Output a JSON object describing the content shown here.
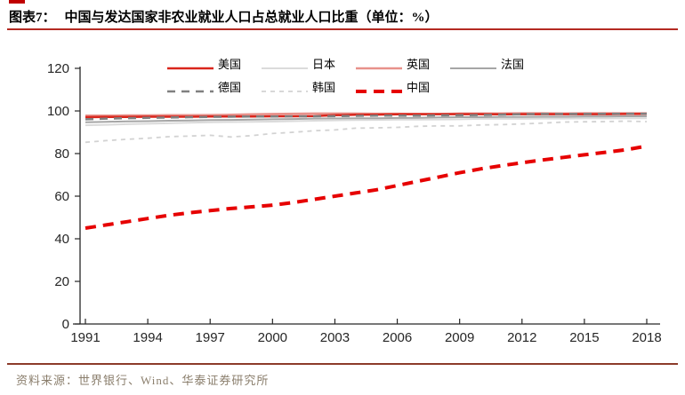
{
  "page": {
    "title_label": "图表7：",
    "title": "中国与发达国家非农业就业人口占总就业人口比重（单位：%）",
    "source_text": "资料来源：世界银行、Wind、华泰证券研究所"
  },
  "colors": {
    "title_rule": "#b42a22",
    "footer_rule": "#8c3b2a",
    "source_text": "#8a7e6c",
    "axis": "#262626",
    "corner_mark": "#c00000"
  },
  "chart_data": {
    "type": "line",
    "title": "中国与发达国家非农业就业人口占总就业人口比重（单位：%）",
    "xlabel": "",
    "ylabel": "",
    "ylim": [
      0,
      120
    ],
    "y_ticks": [
      0,
      20,
      40,
      60,
      80,
      100,
      120
    ],
    "x_ticks": [
      1991,
      1994,
      1997,
      2000,
      2003,
      2006,
      2009,
      2012,
      2015,
      2018
    ],
    "grid": false,
    "legend_position": "top",
    "x": [
      1991,
      1992,
      1993,
      1994,
      1995,
      1996,
      1997,
      1998,
      1999,
      2000,
      2001,
      2002,
      2003,
      2004,
      2005,
      2006,
      2007,
      2008,
      2009,
      2010,
      2011,
      2012,
      2013,
      2014,
      2015,
      2016,
      2017,
      2018
    ],
    "series": [
      {
        "id": "us",
        "name": "美国",
        "color": "#d9261c",
        "style": "solid",
        "width": 2.5,
        "values": [
          97.1,
          97.2,
          97.2,
          97.3,
          97.3,
          97.3,
          97.4,
          97.4,
          97.4,
          97.5,
          97.5,
          97.6,
          98.0,
          98.2,
          98.3,
          98.4,
          98.5,
          98.5,
          98.5,
          98.5,
          98.4,
          98.5,
          98.5,
          98.5,
          98.5,
          98.5,
          98.6,
          98.6
        ]
      },
      {
        "id": "japan",
        "name": "日本",
        "color": "#dbdbdb",
        "style": "solid",
        "width": 2,
        "values": [
          93.3,
          93.5,
          93.8,
          94.0,
          94.2,
          94.5,
          94.7,
          94.8,
          94.9,
          95.0,
          95.2,
          95.4,
          95.6,
          95.7,
          95.8,
          95.9,
          95.9,
          96.0,
          96.1,
          96.3,
          96.3,
          96.3,
          96.4,
          96.4,
          96.5,
          96.5,
          96.6,
          96.6
        ]
      },
      {
        "id": "uk",
        "name": "英国",
        "color": "#e8918b",
        "style": "solid",
        "width": 2.5,
        "values": [
          97.8,
          97.8,
          97.9,
          97.9,
          98.0,
          98.0,
          98.1,
          98.2,
          98.4,
          98.6,
          98.7,
          98.8,
          98.8,
          98.8,
          98.7,
          98.7,
          98.6,
          98.6,
          98.8,
          98.8,
          98.8,
          98.9,
          98.9,
          98.8,
          98.9,
          98.9,
          98.9,
          98.9
        ]
      },
      {
        "id": "france",
        "name": "法国",
        "color": "#a6a6a6",
        "style": "solid",
        "width": 2,
        "values": [
          94.7,
          94.9,
          95.1,
          95.2,
          95.4,
          95.5,
          95.7,
          95.8,
          95.9,
          96.1,
          96.2,
          96.4,
          96.5,
          96.6,
          96.6,
          96.7,
          96.8,
          97.0,
          97.1,
          97.1,
          97.2,
          97.2,
          97.3,
          97.3,
          97.4,
          97.4,
          97.5,
          97.5
        ]
      },
      {
        "id": "germany",
        "name": "德国",
        "color": "#808080",
        "style": "dashed",
        "width": 2.5,
        "values": [
          96.1,
          96.4,
          96.6,
          96.8,
          96.9,
          97.1,
          97.2,
          97.3,
          97.4,
          97.4,
          97.5,
          97.5,
          97.6,
          97.7,
          97.8,
          97.8,
          97.8,
          97.9,
          98.0,
          98.1,
          98.3,
          98.5,
          98.6,
          98.6,
          98.6,
          98.7,
          98.7,
          98.7
        ]
      },
      {
        "id": "korea",
        "name": "韩国",
        "color": "#d2d2d2",
        "style": "dashed",
        "width": 1.8,
        "values": [
          85.3,
          86.1,
          86.7,
          87.2,
          87.9,
          88.2,
          88.6,
          87.8,
          88.4,
          89.4,
          90.0,
          90.7,
          91.1,
          91.9,
          92.1,
          92.3,
          92.8,
          93.0,
          93.0,
          93.4,
          93.6,
          93.9,
          94.3,
          94.8,
          94.9,
          95.0,
          95.2,
          95.0
        ]
      },
      {
        "id": "china",
        "name": "中国",
        "color": "#e60000",
        "style": "bold-dashed",
        "width": 4,
        "values": [
          45.0,
          46.5,
          48.0,
          49.5,
          51.0,
          52.2,
          53.2,
          54.2,
          55.0,
          55.8,
          57.0,
          58.5,
          60.0,
          61.5,
          63.0,
          65.0,
          67.0,
          69.0,
          71.0,
          72.8,
          74.3,
          75.7,
          77.0,
          78.2,
          79.4,
          80.6,
          81.8,
          83.5
        ]
      }
    ]
  }
}
